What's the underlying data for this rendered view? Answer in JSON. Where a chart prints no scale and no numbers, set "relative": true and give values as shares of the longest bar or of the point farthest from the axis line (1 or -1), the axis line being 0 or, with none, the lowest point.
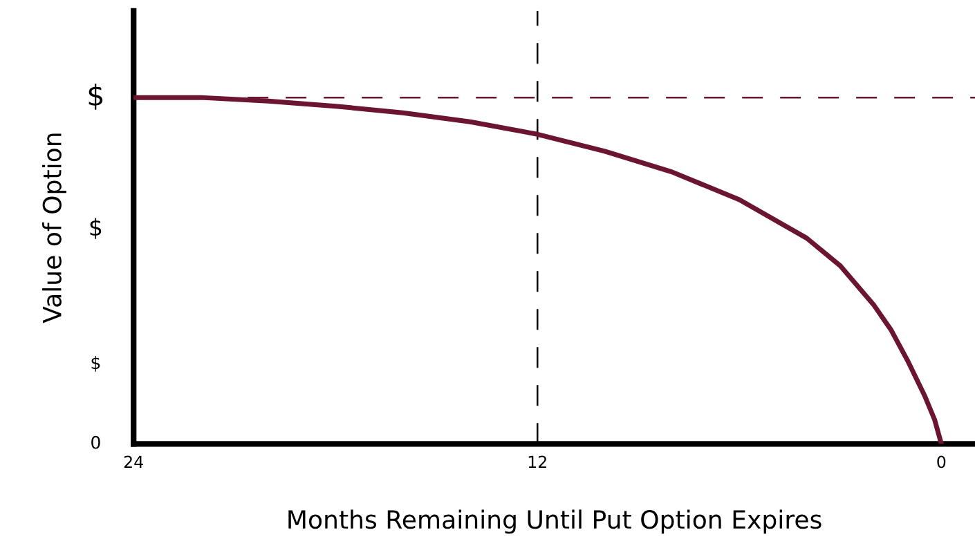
{
  "chart_data": {
    "type": "line",
    "relative": true,
    "xlabel": "Months Remaining Until Put Option Expires",
    "ylabel": "Value of Option",
    "x": [
      24,
      22,
      20,
      18,
      16,
      14,
      12,
      10,
      8,
      6,
      4,
      3,
      2,
      1.5,
      1,
      0.5,
      0.2,
      0
    ],
    "series": [
      {
        "color": "#6b1530",
        "values": [
          1.0,
          1.0,
          0.99,
          0.975,
          0.956,
          0.93,
          0.894,
          0.845,
          0.785,
          0.705,
          0.594,
          0.514,
          0.4,
          0.33,
          0.24,
          0.14,
          0.07,
          0.0
        ]
      }
    ],
    "xlim": [
      24,
      -1
    ],
    "xticks": [
      24,
      12,
      0
    ],
    "annotations": [
      "0",
      "$",
      "$",
      "$"
    ],
    "ref_lines": [
      {
        "axis": "y",
        "value": 1.0,
        "color": "#6b1530",
        "line_style": "dashed"
      },
      {
        "axis": "x",
        "value": 12,
        "color": "#000000",
        "line_style": "dashed"
      }
    ],
    "grid": false,
    "legend": false,
    "marker": "none",
    "line_style": "solid"
  }
}
